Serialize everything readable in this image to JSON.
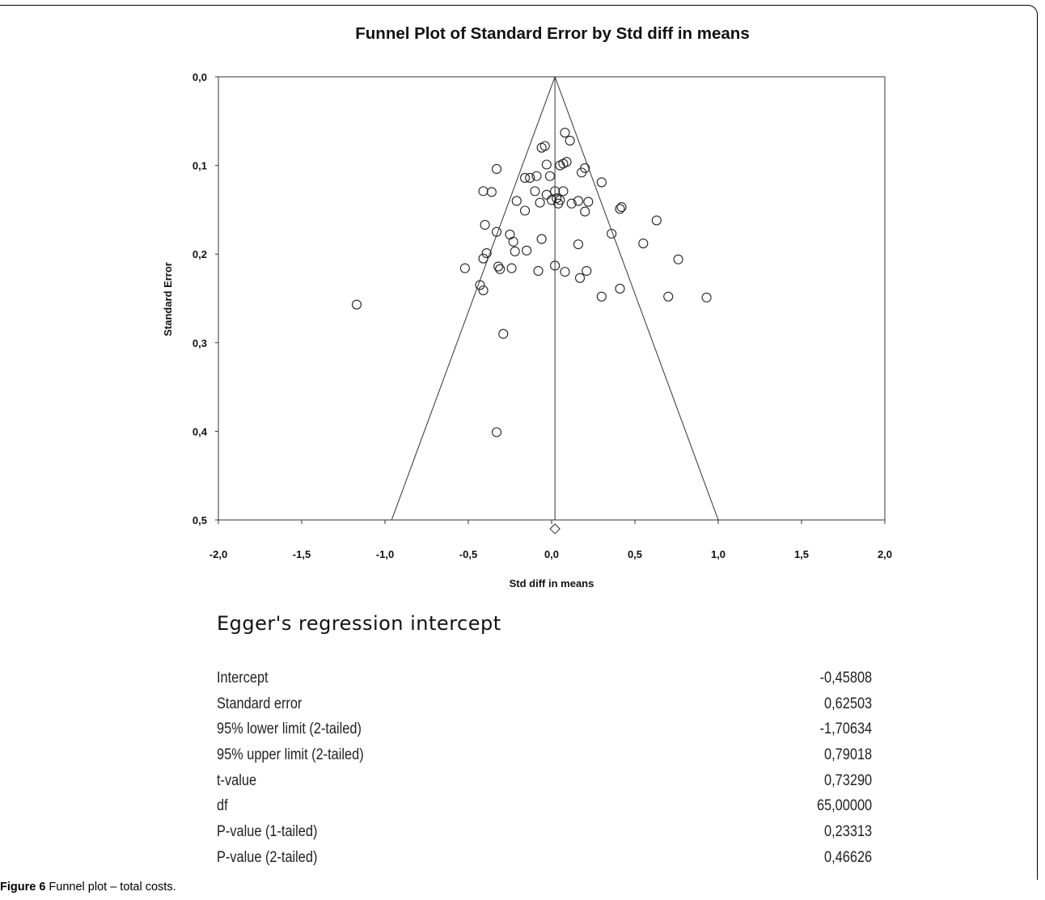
{
  "chart_data": {
    "type": "scatter",
    "title": "Funnel Plot of Standard Error by Std diff in means",
    "xlabel": "Std diff in means",
    "ylabel": "Standard Error",
    "xlim": [
      -2.0,
      2.0
    ],
    "ylim": [
      0.0,
      0.5
    ],
    "y_inverted": true,
    "x_ticks": [
      "-2,0",
      "-1,5",
      "-1,0",
      "-0,5",
      "0,0",
      "0,5",
      "1,0",
      "1,5",
      "2,0"
    ],
    "y_ticks": [
      "0,0",
      "0,1",
      "0,2",
      "0,3",
      "0,4",
      "0,5"
    ],
    "funnel_center": 0.02,
    "summary_diamond": {
      "x": 0.02,
      "y": 0.51
    },
    "points": [
      [
        0.08,
        0.063
      ],
      [
        0.11,
        0.072
      ],
      [
        -0.06,
        0.08
      ],
      [
        -0.04,
        0.078
      ],
      [
        -0.03,
        0.099
      ],
      [
        0.05,
        0.1
      ],
      [
        0.07,
        0.098
      ],
      [
        0.09,
        0.096
      ],
      [
        0.2,
        0.103
      ],
      [
        0.18,
        0.108
      ],
      [
        0.3,
        0.119
      ],
      [
        -0.33,
        0.104
      ],
      [
        -0.16,
        0.114
      ],
      [
        -0.13,
        0.114
      ],
      [
        -0.09,
        0.112
      ],
      [
        -0.01,
        0.112
      ],
      [
        -0.41,
        0.129
      ],
      [
        -0.36,
        0.13
      ],
      [
        -0.1,
        0.129
      ],
      [
        0.02,
        0.129
      ],
      [
        0.07,
        0.129
      ],
      [
        -0.03,
        0.133
      ],
      [
        -0.21,
        0.14
      ],
      [
        -0.07,
        0.142
      ],
      [
        0.0,
        0.139
      ],
      [
        0.03,
        0.137
      ],
      [
        0.05,
        0.139
      ],
      [
        0.04,
        0.143
      ],
      [
        0.12,
        0.143
      ],
      [
        0.16,
        0.14
      ],
      [
        0.22,
        0.141
      ],
      [
        0.2,
        0.152
      ],
      [
        0.41,
        0.149
      ],
      [
        0.42,
        0.147
      ],
      [
        -0.16,
        0.151
      ],
      [
        -0.4,
        0.167
      ],
      [
        0.63,
        0.162
      ],
      [
        -0.33,
        0.175
      ],
      [
        -0.25,
        0.178
      ],
      [
        -0.06,
        0.183
      ],
      [
        0.36,
        0.177
      ],
      [
        -0.23,
        0.186
      ],
      [
        0.16,
        0.189
      ],
      [
        0.55,
        0.188
      ],
      [
        -0.39,
        0.199
      ],
      [
        -0.41,
        0.205
      ],
      [
        -0.22,
        0.197
      ],
      [
        -0.15,
        0.196
      ],
      [
        0.76,
        0.206
      ],
      [
        -0.32,
        0.214
      ],
      [
        -0.31,
        0.217
      ],
      [
        -0.24,
        0.216
      ],
      [
        -0.52,
        0.216
      ],
      [
        0.02,
        0.213
      ],
      [
        -0.08,
        0.219
      ],
      [
        0.08,
        0.22
      ],
      [
        0.21,
        0.219
      ],
      [
        0.17,
        0.227
      ],
      [
        -0.43,
        0.235
      ],
      [
        -0.41,
        0.241
      ],
      [
        0.41,
        0.239
      ],
      [
        0.3,
        0.248
      ],
      [
        0.7,
        0.248
      ],
      [
        0.93,
        0.249
      ],
      [
        -1.17,
        0.257
      ],
      [
        -0.29,
        0.29
      ],
      [
        -0.33,
        0.401
      ]
    ]
  },
  "egger": {
    "title": "Egger's regression intercept",
    "rows": [
      {
        "label": "Intercept",
        "value": "-0,45808"
      },
      {
        "label": "Standard error",
        "value": "0,62503"
      },
      {
        "label": "95% lower limit (2-tailed)",
        "value": "-1,70634"
      },
      {
        "label": "95% upper limit (2-tailed)",
        "value": "0,79018"
      },
      {
        "label": "t-value",
        "value": "0,73290"
      },
      {
        "label": "df",
        "value": "65,00000"
      },
      {
        "label": "P-value (1-tailed)",
        "value": "0,23313"
      },
      {
        "label": "P-value (2-tailed)",
        "value": "0,46626"
      }
    ]
  },
  "caption": {
    "label": "Figure 6",
    "text": " Funnel plot – total costs."
  }
}
